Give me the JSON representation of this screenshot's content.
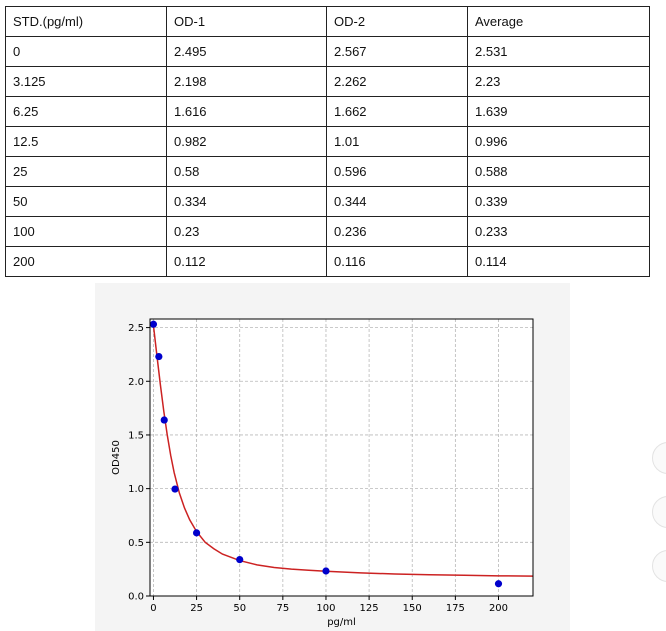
{
  "table": {
    "headers": [
      "STD.(pg/ml)",
      "OD-1",
      "OD-2",
      "Average"
    ],
    "rows": [
      [
        "0",
        "2.495",
        "2.567",
        "2.531"
      ],
      [
        "3.125",
        "2.198",
        "2.262",
        "2.23"
      ],
      [
        "6.25",
        "1.616",
        "1.662",
        "1.639"
      ],
      [
        "12.5",
        "0.982",
        "1.01",
        "0.996"
      ],
      [
        "25",
        "0.58",
        "0.596",
        "0.588"
      ],
      [
        "50",
        "0.334",
        "0.344",
        "0.339"
      ],
      [
        "100",
        "0.23",
        "0.236",
        "0.233"
      ],
      [
        "200",
        "0.112",
        "0.116",
        "0.114"
      ]
    ]
  },
  "chart_data": {
    "type": "scatter",
    "xlabel": "pg/ml",
    "ylabel": "OD450",
    "xlim": [
      -2,
      220
    ],
    "ylim": [
      0,
      2.58
    ],
    "xticks": [
      0,
      25,
      50,
      75,
      100,
      125,
      150,
      175,
      200
    ],
    "yticks": [
      0.0,
      0.5,
      1.0,
      1.5,
      2.0,
      2.5
    ],
    "xtick_labels": [
      "0",
      "25",
      "50",
      "75",
      "100",
      "125",
      "150",
      "175",
      "200"
    ],
    "ytick_labels": [
      "0.0",
      "0.5",
      "1.0",
      "1.5",
      "2.0",
      "2.5"
    ],
    "grid": true,
    "series": [
      {
        "kind": "points",
        "color": "#0000cc",
        "x": [
          0,
          3.125,
          6.25,
          12.5,
          25,
          50,
          100,
          200
        ],
        "y": [
          2.531,
          2.23,
          1.639,
          0.996,
          0.588,
          0.339,
          0.233,
          0.114
        ]
      },
      {
        "kind": "fitted-curve",
        "color": "#cc2222",
        "x": [
          0,
          2,
          4,
          6,
          8,
          10,
          12,
          15,
          18,
          21,
          25,
          30,
          35,
          40,
          45,
          50,
          60,
          70,
          80,
          90,
          100,
          120,
          140,
          160,
          180,
          200,
          220
        ],
        "y": [
          2.52,
          2.24,
          1.97,
          1.72,
          1.5,
          1.31,
          1.15,
          0.96,
          0.82,
          0.71,
          0.6,
          0.5,
          0.44,
          0.39,
          0.36,
          0.33,
          0.29,
          0.265,
          0.25,
          0.24,
          0.23,
          0.215,
          0.205,
          0.198,
          0.193,
          0.188,
          0.185
        ]
      }
    ]
  }
}
